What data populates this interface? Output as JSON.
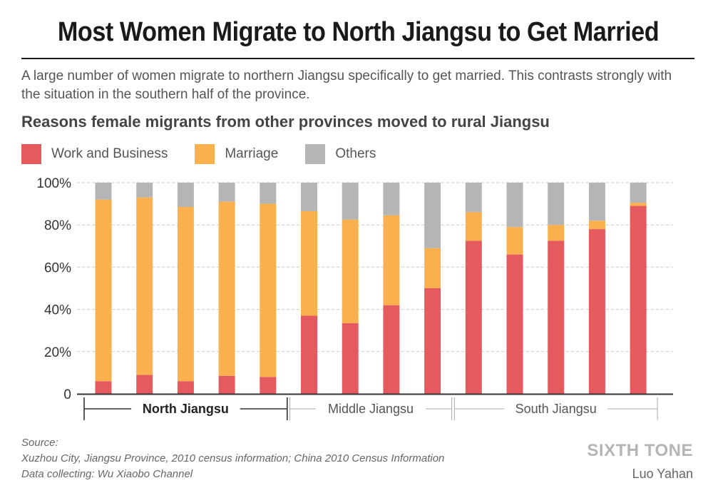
{
  "title": "Most Women Migrate to North Jiangsu to Get Married",
  "subtitle": "A large number of women migrate to northern Jiangsu specifically to get married. This contrasts strongly with the situation in the southern half of the province.",
  "colors": {
    "work": "#e45a5f",
    "marriage": "#fbb04e",
    "others": "#b5b5b5",
    "grid": "#cccccc",
    "axis": "#333333"
  },
  "chart_data": {
    "type": "bar",
    "stacked": true,
    "title": "Reasons female migrants from other provinces moved to rural Jiangsu",
    "ylim": [
      0,
      100
    ],
    "yticks": [
      "0",
      "20%",
      "40%",
      "60%",
      "80%",
      "100%"
    ],
    "grid": true,
    "legend_position": "top-left",
    "categories": [
      "",
      "",
      "",
      "",
      "",
      "",
      "",
      "",
      "",
      "",
      "",
      "",
      "",
      ""
    ],
    "series": [
      {
        "name": "Work and Business",
        "values": [
          6,
          9,
          6,
          8.5,
          8,
          37,
          33.5,
          42,
          50,
          72.5,
          66,
          72.5,
          78,
          89
        ]
      },
      {
        "name": "Marriage",
        "values": [
          86,
          84,
          82.5,
          82.5,
          82,
          49.5,
          49,
          42.5,
          19,
          13.5,
          13,
          7.5,
          4,
          1.5
        ]
      },
      {
        "name": "Others",
        "values": [
          8,
          7,
          11.5,
          9,
          10,
          13.5,
          17.5,
          15.5,
          31,
          14,
          21,
          20,
          18,
          9.5
        ]
      }
    ],
    "groups": [
      {
        "label": "North Jiangsu",
        "start": 0,
        "end": 4,
        "emphasis": true
      },
      {
        "label": "Middle Jiangsu",
        "start": 5,
        "end": 8,
        "emphasis": false
      },
      {
        "label": "South Jiangsu",
        "start": 9,
        "end": 13,
        "emphasis": false
      }
    ]
  },
  "source": {
    "label": "Source:",
    "line1": "Xuzhou City, Jiangsu Province, 2010 census information; China 2010 Census Information",
    "line2": "Data collecting: Wu Xiaobo Channel"
  },
  "brand": "SIXTH TONE",
  "author": "Luo Yahan"
}
